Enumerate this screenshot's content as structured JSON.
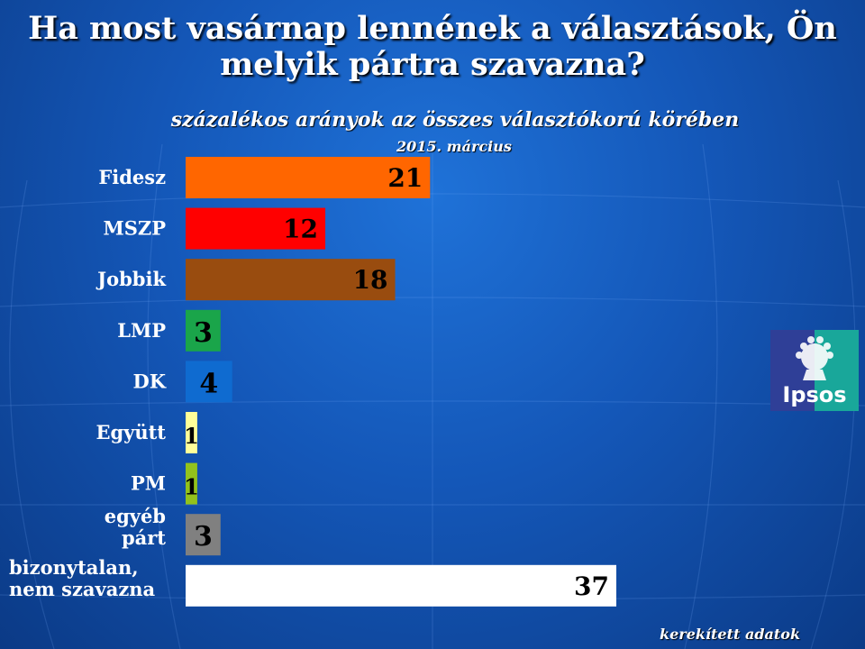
{
  "title": "Ha most vasárnap lennének a választások, Ön melyik pártra szavazna?",
  "subtitle": "százalékos arányok az összes választókorú körében",
  "period": "2015.  március",
  "footnote": "kerekített adatok",
  "logo_text": "Ipsos",
  "chart_data": {
    "type": "bar",
    "orientation": "horizontal",
    "categories": [
      [
        "Fidesz"
      ],
      [
        "MSZP"
      ],
      [
        "Jobbik"
      ],
      [
        "LMP"
      ],
      [
        "DK"
      ],
      [
        "Együtt"
      ],
      [
        "PM"
      ],
      [
        "egyéb",
        "párt"
      ],
      [
        "bizonytalan,",
        "nem szavazna"
      ]
    ],
    "values": [
      21,
      12,
      18,
      3,
      4,
      1,
      1,
      3,
      37
    ],
    "colors": [
      "#ff6600",
      "#ff0000",
      "#994c0f",
      "#1aa54a",
      "#0f6bd0",
      "#ffff99",
      "#92c21c",
      "#808080",
      "#ffffff"
    ],
    "xlim": [
      0,
      37
    ]
  }
}
